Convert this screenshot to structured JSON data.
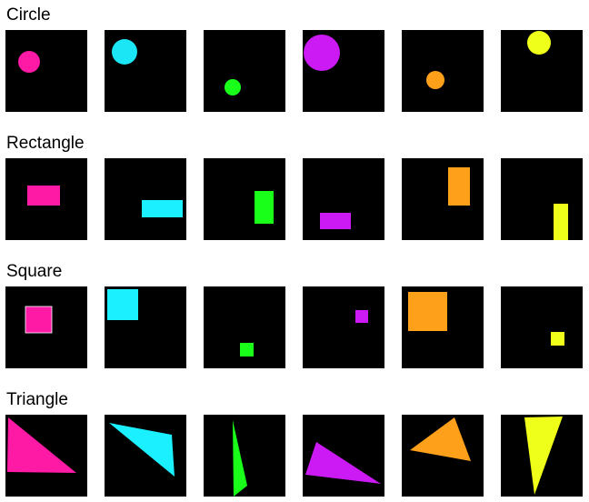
{
  "rows": [
    {
      "label": "Circle",
      "shape": "circle",
      "tiles": [
        {
          "color": "#ff1aa6"
        },
        {
          "color": "#1ae6f5"
        },
        {
          "color": "#1aff1a"
        },
        {
          "color": "#cc1af5"
        },
        {
          "color": "#ffa01a"
        },
        {
          "color": "#f0ff1a"
        }
      ]
    },
    {
      "label": "Rectangle",
      "shape": "rectangle",
      "tiles": [
        {
          "color": "#ff1aa6"
        },
        {
          "color": "#1af0ff"
        },
        {
          "color": "#1aff1a"
        },
        {
          "color": "#cc1af5"
        },
        {
          "color": "#ffa01a"
        },
        {
          "color": "#f0ff1a"
        }
      ]
    },
    {
      "label": "Square",
      "shape": "square",
      "tiles": [
        {
          "color": "#ff1aa6"
        },
        {
          "color": "#1af0ff"
        },
        {
          "color": "#1aff1a"
        },
        {
          "color": "#cc1af5"
        },
        {
          "color": "#ffa01a"
        },
        {
          "color": "#f0ff1a"
        }
      ]
    },
    {
      "label": "Triangle",
      "shape": "triangle",
      "tiles": [
        {
          "color": "#ff1aa6"
        },
        {
          "color": "#1af0ff"
        },
        {
          "color": "#1aff1a"
        },
        {
          "color": "#cc1af5"
        },
        {
          "color": "#ffa01a"
        },
        {
          "color": "#f0ff1a"
        }
      ]
    }
  ]
}
